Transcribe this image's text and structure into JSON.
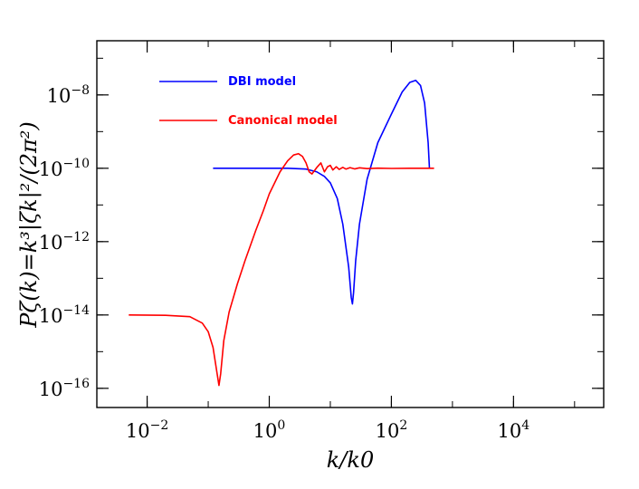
{
  "chart_data": {
    "type": "line",
    "xlabel": "k/k0",
    "ylabel": "Pζ(k)=k³|ζk|²/(2π²)",
    "x_scale": "log",
    "y_scale": "log",
    "xlim": [
      0.0015,
      300000
    ],
    "ylim": [
      3e-17,
      3e-07
    ],
    "x_ticks": [
      {
        "base": "10",
        "exp": "−2",
        "value": 0.01
      },
      {
        "base": "10",
        "exp": "0",
        "value": 1
      },
      {
        "base": "10",
        "exp": "2",
        "value": 100
      },
      {
        "base": "10",
        "exp": "4",
        "value": 10000
      }
    ],
    "y_ticks": [
      {
        "base": "10",
        "exp": "−8",
        "value": 1e-08
      },
      {
        "base": "10",
        "exp": "−10",
        "value": 1e-10
      },
      {
        "base": "10",
        "exp": "−12",
        "value": 1e-12
      },
      {
        "base": "10",
        "exp": "−14",
        "value": 1e-14
      },
      {
        "base": "10",
        "exp": "−16",
        "value": 1e-16
      }
    ],
    "legend_position": "top-left",
    "series": [
      {
        "name": "DBI model",
        "color": "#0000ff",
        "points": [
          [
            0.12,
            1e-10
          ],
          [
            2,
            1e-10
          ],
          [
            4,
            9.5e-11
          ],
          [
            6,
            8e-11
          ],
          [
            8,
            6e-11
          ],
          [
            10,
            4e-11
          ],
          [
            13,
            1.5e-11
          ],
          [
            16,
            3e-12
          ],
          [
            20,
            2e-13
          ],
          [
            22,
            3e-14
          ],
          [
            23,
            2e-14
          ],
          [
            24,
            4e-14
          ],
          [
            26,
            3e-13
          ],
          [
            30,
            3e-12
          ],
          [
            40,
            5e-11
          ],
          [
            60,
            5e-10
          ],
          [
            100,
            3e-09
          ],
          [
            150,
            1.2e-08
          ],
          [
            200,
            2.2e-08
          ],
          [
            250,
            2.5e-08
          ],
          [
            300,
            1.8e-08
          ],
          [
            350,
            6e-09
          ],
          [
            400,
            5e-10
          ],
          [
            420,
            1e-10
          ]
        ]
      },
      {
        "name": "Canonical model",
        "color": "#ff0000",
        "points": [
          [
            0.005,
            1e-14
          ],
          [
            0.02,
            9.8e-15
          ],
          [
            0.05,
            9e-15
          ],
          [
            0.08,
            6e-15
          ],
          [
            0.1,
            3.5e-15
          ],
          [
            0.12,
            1.3e-15
          ],
          [
            0.14,
            2.5e-16
          ],
          [
            0.15,
            1.2e-16
          ],
          [
            0.16,
            2.5e-16
          ],
          [
            0.18,
            2e-15
          ],
          [
            0.22,
            1.2e-14
          ],
          [
            0.3,
            7e-14
          ],
          [
            0.4,
            3e-13
          ],
          [
            0.6,
            2e-12
          ],
          [
            0.8,
            7e-12
          ],
          [
            1,
            2e-11
          ],
          [
            1.5,
            8e-11
          ],
          [
            2,
            1.6e-10
          ],
          [
            2.5,
            2.3e-10
          ],
          [
            3,
            2.5e-10
          ],
          [
            3.5,
            2.1e-10
          ],
          [
            4,
            1.4e-10
          ],
          [
            4.5,
            8e-11
          ],
          [
            5,
            7e-11
          ],
          [
            6,
            1.05e-10
          ],
          [
            7,
            1.4e-10
          ],
          [
            8,
            8e-11
          ],
          [
            9,
            1.1e-10
          ],
          [
            10,
            1.2e-10
          ],
          [
            11,
            9e-11
          ],
          [
            12.5,
            1.1e-10
          ],
          [
            14,
            9.3e-11
          ],
          [
            16,
            1.06e-10
          ],
          [
            18,
            9.5e-11
          ],
          [
            21,
            1.04e-10
          ],
          [
            25,
            9.6e-11
          ],
          [
            30,
            1.03e-10
          ],
          [
            40,
            9.8e-11
          ],
          [
            60,
            1.01e-10
          ],
          [
            100,
            9.9e-11
          ],
          [
            200,
            1e-10
          ],
          [
            500,
            1e-10
          ]
        ]
      }
    ]
  }
}
